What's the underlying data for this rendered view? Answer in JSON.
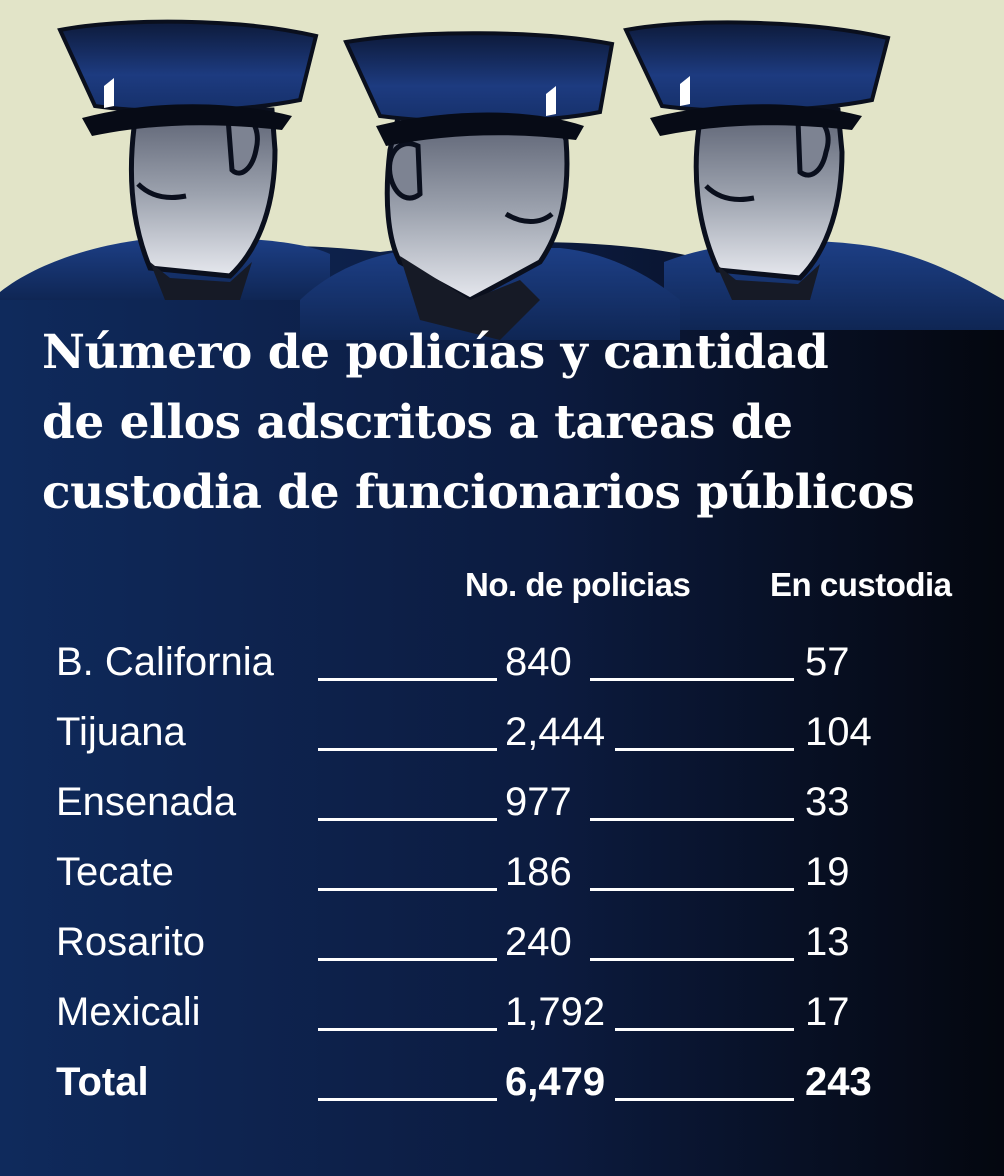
{
  "chart_data": {
    "type": "table",
    "title": "Número de policías y cantidad de ellos adscritos a tareas de custodia de funcionarios públicos",
    "title_lines": [
      "Número de policías y cantidad",
      "de ellos adscritos a tareas de",
      "custodia de funcionarios públicos"
    ],
    "columns": [
      "No. de policias",
      "En custodia"
    ],
    "rows": [
      {
        "name": "B. California",
        "police": 840,
        "custody": 57,
        "police_label": "840",
        "custody_label": "57"
      },
      {
        "name": "Tijuana",
        "police": 2444,
        "custody": 104,
        "police_label": "2,444",
        "custody_label": "104"
      },
      {
        "name": "Ensenada",
        "police": 977,
        "custody": 33,
        "police_label": "977",
        "custody_label": "33"
      },
      {
        "name": "Tecate",
        "police": 186,
        "custody": 19,
        "police_label": "186",
        "custody_label": "19"
      },
      {
        "name": "Rosarito",
        "police": 240,
        "custody": 13,
        "police_label": "240",
        "custody_label": "13"
      },
      {
        "name": "Mexicali",
        "police": 1792,
        "custody": 17,
        "police_label": "1,792",
        "custody_label": "17"
      }
    ],
    "total": {
      "name": "Total",
      "police": 6479,
      "custody": 243,
      "police_label": "6,479",
      "custody_label": "243"
    }
  },
  "colors": {
    "background_top": "#e2e4c8",
    "navy_dark": "#0b1530",
    "navy_mid": "#102650",
    "navy_light": "#1b3f85",
    "text": "#ffffff"
  },
  "illustration": {
    "subject": "three-police-officers",
    "icons": [
      "police-officer-left-icon",
      "police-officer-center-icon",
      "police-officer-right-icon"
    ]
  }
}
